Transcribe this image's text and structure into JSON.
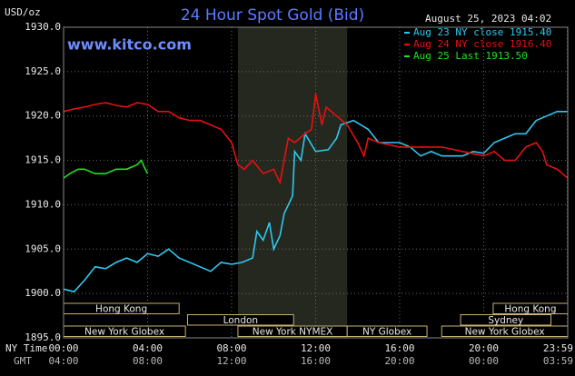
{
  "chart_data": {
    "type": "line",
    "title": "24 Hour Spot Gold (Bid)",
    "subtitle": "August 25, 2023 04:02",
    "source": "www.kitco.com",
    "y_label": "USD/oz",
    "x_row_labels": [
      "NY Time",
      "GMT"
    ],
    "xlim": [
      0,
      24
    ],
    "xticks": [
      {
        "value": 0,
        "label": "00:00"
      },
      {
        "value": 4,
        "label": "04:00"
      },
      {
        "value": 8,
        "label": "08:00"
      },
      {
        "value": 12,
        "label": "12:00"
      },
      {
        "value": 16,
        "label": "16:00"
      },
      {
        "value": 20,
        "label": "20:00"
      },
      {
        "value": 23.98,
        "label": "23:59"
      }
    ],
    "gmt_labels": [
      "04:00",
      "08:00",
      "12:00",
      "16:00",
      "20:00",
      "00:00",
      "03:59"
    ],
    "ylim": [
      1895,
      1930
    ],
    "yticks": [
      {
        "value": 1895,
        "label": "1895.0"
      },
      {
        "value": 1900,
        "label": "1900.0"
      },
      {
        "value": 1905,
        "label": "1905.0"
      },
      {
        "value": 1910,
        "label": "1910.0"
      },
      {
        "value": 1915,
        "label": "1915.0"
      },
      {
        "value": 1920,
        "label": "1920.0"
      },
      {
        "value": 1925,
        "label": "1925.0"
      },
      {
        "value": 1930,
        "label": "1930.0"
      }
    ],
    "grid": true,
    "sessions": [
      {
        "label": "Hong Kong",
        "row": 0,
        "start": 0,
        "end": 5.5
      },
      {
        "label": "Hong Kong",
        "row": 0,
        "start": 20.45,
        "end": 24
      },
      {
        "label": "London",
        "row": 1,
        "start": 5.9,
        "end": 10.95
      },
      {
        "label": "Sydney",
        "row": 1,
        "start": 18.9,
        "end": 23.2
      },
      {
        "label": "New York Globex",
        "row": 2,
        "start": 0,
        "end": 5.8
      },
      {
        "label": "New York NYMEX",
        "row": 2,
        "start": 8.3,
        "end": 13.5,
        "shaded": true
      },
      {
        "label": "NY Globex",
        "row": 2,
        "start": 13.5,
        "end": 17.3
      },
      {
        "label": "New York Globex",
        "row": 2,
        "start": 18,
        "end": 24
      }
    ],
    "series": [
      {
        "name": "Aug 23 NY close 1915.40",
        "color": "#2ec8f0",
        "x": [
          0,
          0.5,
          1,
          1.5,
          2,
          2.5,
          3,
          3.5,
          4,
          4.5,
          5,
          5.5,
          6,
          6.5,
          7,
          7.5,
          8,
          8.5,
          9,
          9.2,
          9.5,
          9.8,
          10,
          10.3,
          10.5,
          10.9,
          11,
          11.3,
          11.5,
          12,
          12.6,
          13,
          13.2,
          13.8,
          14.5,
          15,
          16,
          16.5,
          17,
          17.5,
          18,
          19,
          19.5,
          20,
          20.5,
          21,
          21.5,
          22,
          22.5,
          23,
          23.5,
          24
        ],
        "values": [
          1900.5,
          1900.2,
          1901.5,
          1903,
          1902.8,
          1903.5,
          1904,
          1903.5,
          1904.5,
          1904.2,
          1905,
          1904,
          1903.5,
          1903,
          1902.5,
          1903.5,
          1903.3,
          1903.5,
          1904,
          1907,
          1906,
          1908,
          1905,
          1906.5,
          1909,
          1911,
          1916,
          1915,
          1918,
          1916,
          1916.2,
          1917.5,
          1919,
          1919.5,
          1918.5,
          1917,
          1917,
          1916.5,
          1915.5,
          1916,
          1915.5,
          1915.5,
          1916,
          1915.8,
          1917,
          1917.5,
          1918,
          1918,
          1919.5,
          1920,
          1920.5,
          1920.5
        ]
      },
      {
        "name": "Aug 24 NY close 1916.40",
        "color": "#e81010",
        "x": [
          0,
          0.5,
          1,
          1.5,
          2,
          2.5,
          3,
          3.5,
          4,
          4.5,
          5,
          5.5,
          6,
          6.5,
          7,
          7.5,
          8,
          8.3,
          8.6,
          9,
          9.5,
          10,
          10.3,
          10.7,
          11,
          11.5,
          11.8,
          12,
          12.3,
          12.5,
          13,
          13.5,
          14,
          14.3,
          14.5,
          15,
          16,
          17,
          18,
          19,
          20,
          20.5,
          21,
          21.5,
          22,
          22.5,
          22.8,
          23,
          23.5,
          24
        ],
        "values": [
          1920.5,
          1920.8,
          1921,
          1921.3,
          1921.5,
          1921.2,
          1921,
          1921.5,
          1921.3,
          1920.5,
          1920.5,
          1919.8,
          1919.5,
          1919.5,
          1919,
          1918.5,
          1917,
          1914.5,
          1914,
          1915,
          1913.5,
          1914,
          1912.5,
          1917.5,
          1917,
          1918,
          1918.5,
          1922.5,
          1919,
          1921,
          1920,
          1919,
          1917,
          1915.5,
          1917.5,
          1917,
          1916.5,
          1916.5,
          1916.5,
          1916,
          1915.5,
          1916,
          1915,
          1915,
          1916.5,
          1917,
          1916,
          1914.5,
          1914,
          1913
        ]
      },
      {
        "name": "Aug 25 Last 1913.50",
        "color": "#22e022",
        "x": [
          0,
          0.3,
          0.7,
          1,
          1.5,
          2,
          2.5,
          3,
          3.5,
          3.7,
          3.85,
          4
        ],
        "values": [
          1913,
          1913.5,
          1914,
          1914,
          1913.5,
          1913.5,
          1914,
          1914,
          1914.5,
          1915,
          1914.2,
          1913.5
        ]
      }
    ]
  }
}
